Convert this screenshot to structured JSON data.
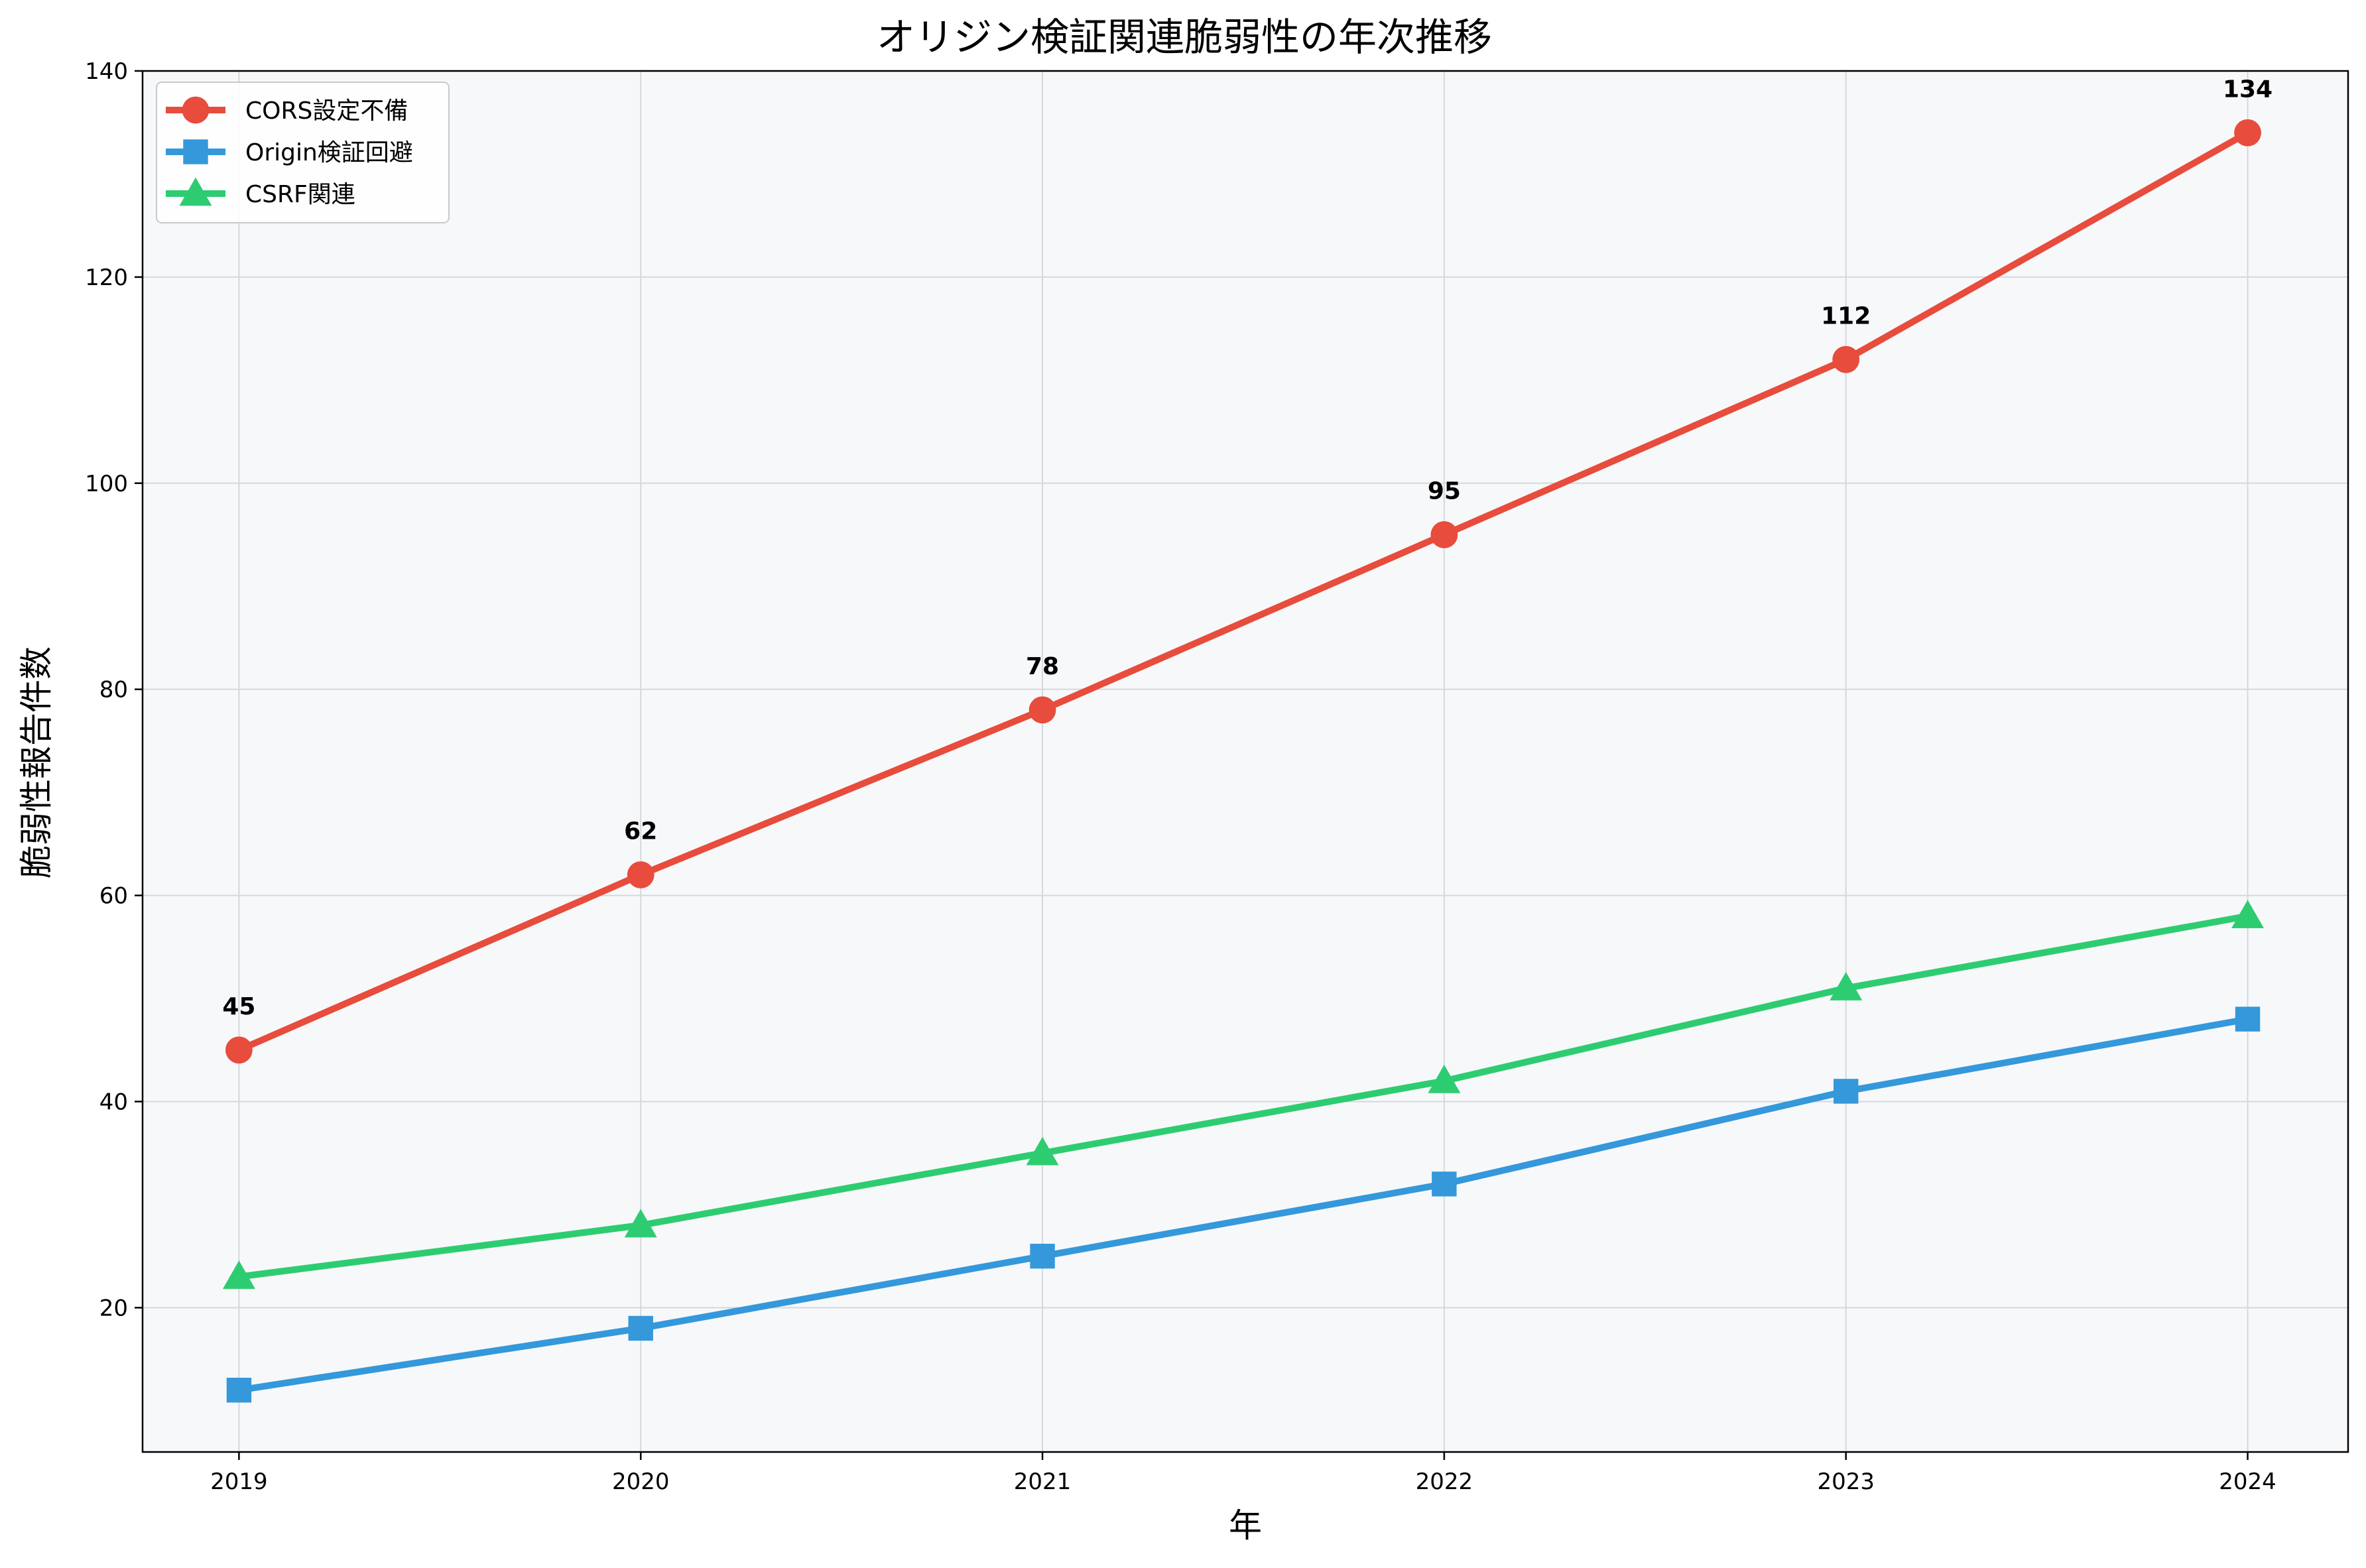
{
  "chart_data": {
    "type": "line",
    "title": "オリジン検証関連脆弱性の年次推移",
    "xlabel": "年",
    "ylabel": "脆弱性報告件数",
    "x": [
      2019,
      2020,
      2021,
      2022,
      2023,
      2024
    ],
    "xticks": [
      "2019",
      "2020",
      "2021",
      "2022",
      "2023",
      "2024"
    ],
    "yticks": [
      20,
      40,
      60,
      80,
      100,
      120,
      140
    ],
    "xlim": [
      2018.76,
      2024.25
    ],
    "ylim": [
      6,
      140
    ],
    "grid": true,
    "legend_position": "upper-left",
    "background_color": "#f7f8fa",
    "series": [
      {
        "name": "CORS設定不備",
        "values": [
          45,
          62,
          78,
          95,
          112,
          134
        ],
        "color": "#e74c3c",
        "marker": "circle",
        "data_labels": [
          "45",
          "62",
          "78",
          "95",
          "112",
          "134"
        ]
      },
      {
        "name": "Origin検証回避",
        "values": [
          12,
          18,
          25,
          32,
          41,
          48
        ],
        "color": "#3498db",
        "marker": "square"
      },
      {
        "name": "CSRF関連",
        "values": [
          23,
          28,
          35,
          42,
          51,
          58
        ],
        "color": "#2ecc71",
        "marker": "triangle"
      }
    ]
  }
}
